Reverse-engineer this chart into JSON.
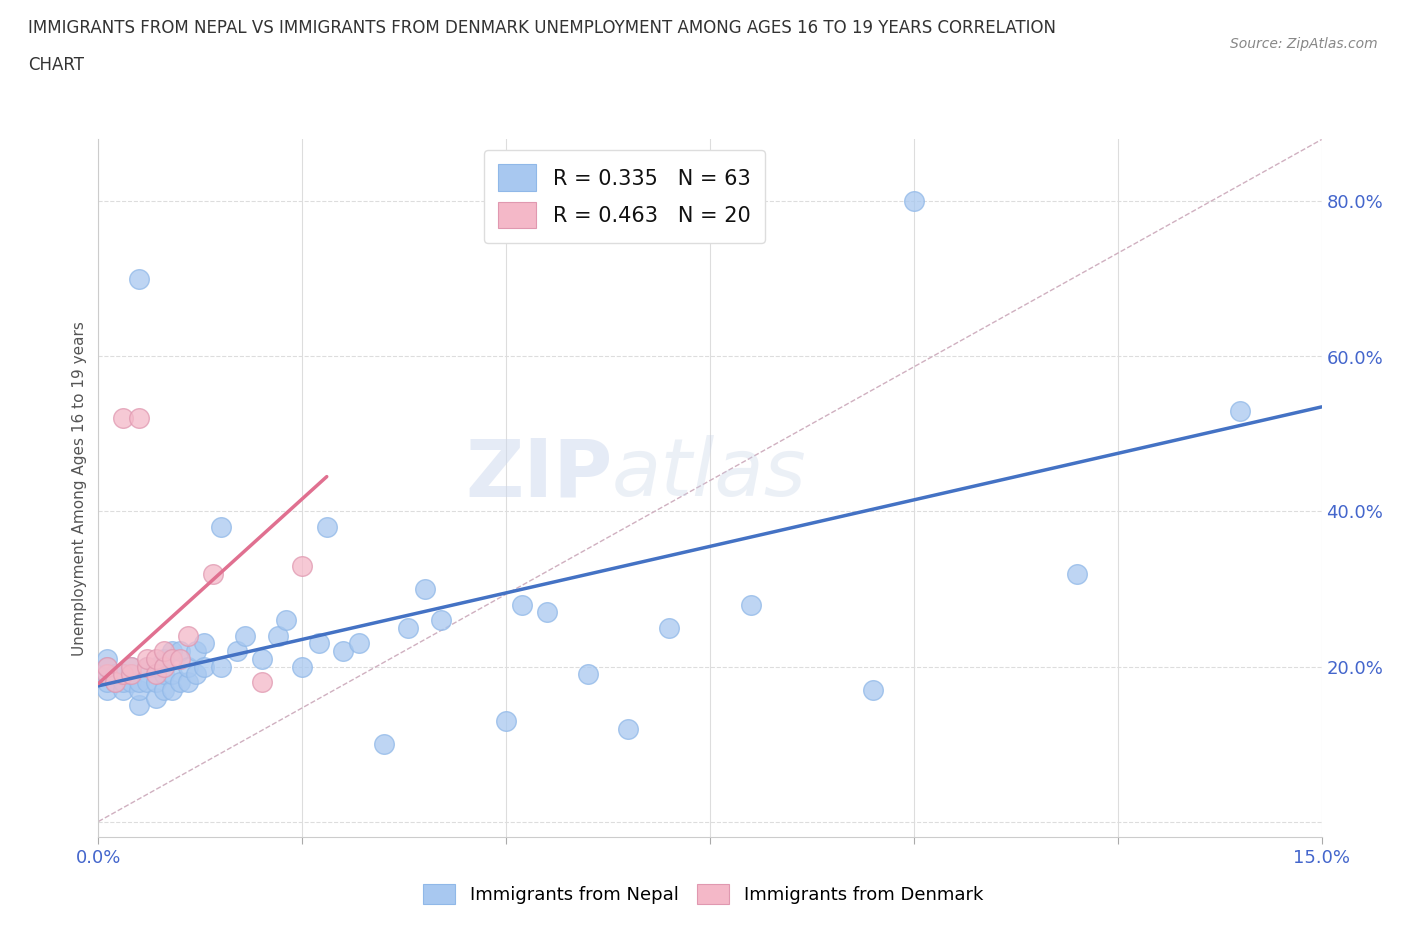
{
  "title_line1": "IMMIGRANTS FROM NEPAL VS IMMIGRANTS FROM DENMARK UNEMPLOYMENT AMONG AGES 16 TO 19 YEARS CORRELATION",
  "title_line2": "CHART",
  "source_text": "Source: ZipAtlas.com",
  "ylabel": "Unemployment Among Ages 16 to 19 years",
  "xlim": [
    0.0,
    0.15
  ],
  "ylim": [
    -0.02,
    0.88
  ],
  "nepal_color": "#a8c8f0",
  "denmark_color": "#f4b8c8",
  "nepal_line_color": "#4472c4",
  "denmark_line_color": "#e07090",
  "ref_line_color": "#d0b0c0",
  "R_nepal": 0.335,
  "N_nepal": 63,
  "R_denmark": 0.463,
  "N_denmark": 20,
  "legend_nepal": "Immigrants from Nepal",
  "legend_denmark": "Immigrants from Denmark",
  "watermark_zip": "ZIP",
  "watermark_atlas": "atlas",
  "nepal_points_x": [
    0.001,
    0.001,
    0.001,
    0.001,
    0.001,
    0.002,
    0.002,
    0.003,
    0.003,
    0.003,
    0.004,
    0.004,
    0.004,
    0.005,
    0.005,
    0.005,
    0.005,
    0.006,
    0.006,
    0.007,
    0.007,
    0.007,
    0.008,
    0.008,
    0.008,
    0.009,
    0.009,
    0.009,
    0.01,
    0.01,
    0.011,
    0.011,
    0.012,
    0.012,
    0.013,
    0.013,
    0.015,
    0.015,
    0.017,
    0.018,
    0.02,
    0.022,
    0.023,
    0.025,
    0.027,
    0.028,
    0.03,
    0.032,
    0.035,
    0.038,
    0.04,
    0.042,
    0.05,
    0.052,
    0.055,
    0.06,
    0.065,
    0.07,
    0.08,
    0.095,
    0.1,
    0.12,
    0.14
  ],
  "nepal_points_y": [
    0.17,
    0.18,
    0.19,
    0.2,
    0.21,
    0.18,
    0.19,
    0.17,
    0.18,
    0.19,
    0.18,
    0.19,
    0.2,
    0.15,
    0.17,
    0.18,
    0.7,
    0.18,
    0.2,
    0.16,
    0.18,
    0.2,
    0.17,
    0.19,
    0.21,
    0.17,
    0.19,
    0.22,
    0.18,
    0.22,
    0.18,
    0.2,
    0.19,
    0.22,
    0.2,
    0.23,
    0.2,
    0.38,
    0.22,
    0.24,
    0.21,
    0.24,
    0.26,
    0.2,
    0.23,
    0.38,
    0.22,
    0.23,
    0.1,
    0.25,
    0.3,
    0.26,
    0.13,
    0.28,
    0.27,
    0.19,
    0.12,
    0.25,
    0.28,
    0.17,
    0.8,
    0.32,
    0.53
  ],
  "denmark_points_x": [
    0.001,
    0.001,
    0.002,
    0.003,
    0.003,
    0.004,
    0.004,
    0.005,
    0.006,
    0.006,
    0.007,
    0.007,
    0.008,
    0.008,
    0.009,
    0.01,
    0.011,
    0.014,
    0.02,
    0.025
  ],
  "denmark_points_y": [
    0.19,
    0.2,
    0.18,
    0.19,
    0.52,
    0.19,
    0.2,
    0.52,
    0.2,
    0.21,
    0.19,
    0.21,
    0.2,
    0.22,
    0.21,
    0.21,
    0.24,
    0.32,
    0.18,
    0.33
  ],
  "nepal_trend_x": [
    0.0,
    0.15
  ],
  "nepal_trend_y": [
    0.175,
    0.535
  ],
  "denmark_trend_x": [
    0.0,
    0.028
  ],
  "denmark_trend_y": [
    0.178,
    0.445
  ],
  "ref_line_x": [
    0.0,
    0.15
  ],
  "ref_line_y": [
    0.0,
    0.88
  ]
}
